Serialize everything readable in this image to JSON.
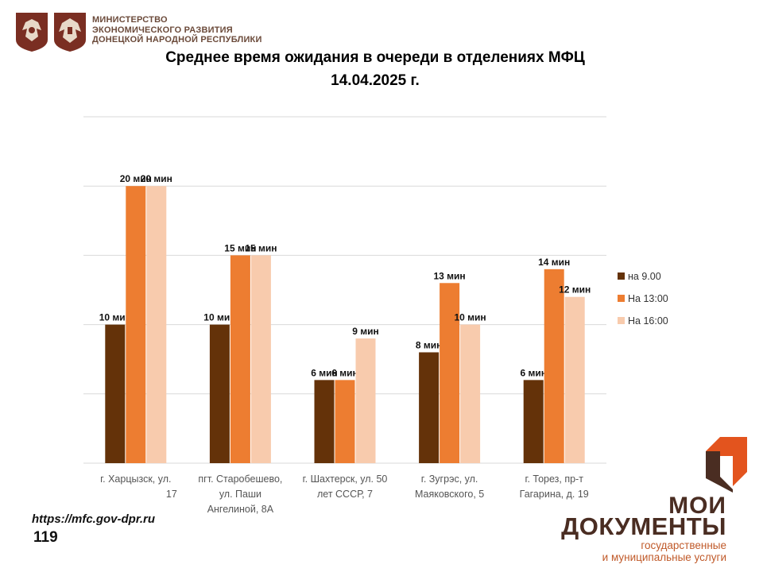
{
  "header": {
    "ministry_lines": [
      "МИНИСТЕРСТВО",
      "ЭКОНОМИЧЕСКОГО РАЗВИТИЯ",
      "ДОНЕЦКОЙ НАРОДНОЙ РЕСПУБЛИКИ"
    ]
  },
  "footer": {
    "url": "https://mfc.gov-dpr.ru",
    "page_number": "119"
  },
  "brand": {
    "line1": "МОИ",
    "line2": "ДОКУМЕНТЫ",
    "sub1": "государственные",
    "sub2": "и муниципальные услуги"
  },
  "colors": {
    "series": [
      "#643209",
      "#ed7d31",
      "#f8cbad"
    ],
    "grid": "#d9d9d9",
    "brand_brown": "#4a2d22",
    "brand_orange": "#e3541e"
  },
  "chart_data": {
    "type": "bar",
    "title": "Среднее время ожидания в очереди в отделениях МФЦ",
    "subtitle": "14.04.2025   г.",
    "categories": [
      [
        "г. Харцызск, ул.",
        "17"
      ],
      [
        "пгт. Старобешево,",
        "ул. Паши",
        "Ангелиной, 8А"
      ],
      [
        "г. Шахтерск, ул. 50",
        "лет СССР, 7"
      ],
      [
        "г. Зугрэс, ул.",
        "Маяковского, 5"
      ],
      [
        "г. Торез, пр-т",
        "Гагарина, д. 19"
      ]
    ],
    "series": [
      {
        "name": "на 9.00",
        "values": [
          10,
          10,
          6,
          8,
          6
        ],
        "labels": [
          "10 мин",
          "10 мин",
          "6 мин",
          "8 мин",
          "6 мин"
        ]
      },
      {
        "name": "На 13:00",
        "values": [
          20,
          15,
          6,
          13,
          14
        ],
        "labels": [
          "20 мин",
          "15 мин",
          "6 мин",
          "13 мин",
          "14 мин"
        ]
      },
      {
        "name": "На 16:00",
        "values": [
          20,
          15,
          9,
          10,
          12
        ],
        "labels": [
          "20 мин",
          "15 мин",
          "9  мин",
          "10 мин",
          "12 мин"
        ]
      }
    ],
    "ylim": [
      0,
      25
    ],
    "grid": true,
    "legend_position": "right"
  }
}
